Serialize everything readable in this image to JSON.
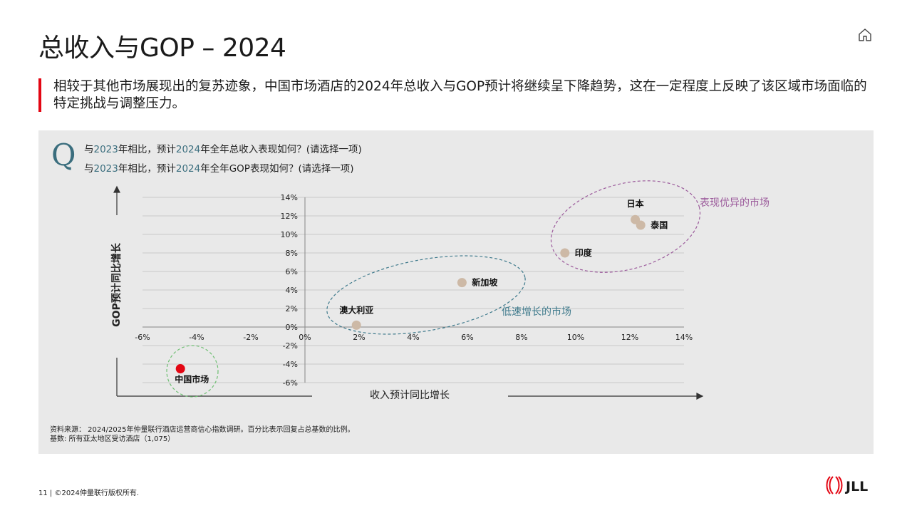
{
  "header": {
    "title": "总收入与GOP – 2024",
    "subtitle": "相较于其他市场展现出的复苏迹象，中国市场酒店的2024年总收入与GOP预计将继续呈下降趋势，这在一定程度上反映了该区域市场面临的特定挑战与调整压力。"
  },
  "question": {
    "marker": "Q",
    "line1": {
      "pre": "与",
      "y1": "2023",
      "mid": "年相比，预计",
      "y2": "2024",
      "post": "年全年总收入表现如何？(请选择一项)"
    },
    "line2": {
      "pre": "与",
      "y1": "2023",
      "mid": "年相比，预计",
      "y2": "2024",
      "post": "年全年GOP表现如何？(请选择一项)"
    }
  },
  "chart_data": {
    "type": "scatter",
    "xlabel": "收入预计同比增长",
    "ylabel": "GOP预计同比增长",
    "xlim": [
      -6,
      14
    ],
    "ylim": [
      -6,
      14
    ],
    "x_ticks": [
      "-6%",
      "-4%",
      "-2%",
      "0%",
      "2%",
      "4%",
      "6%",
      "8%",
      "10%",
      "12%",
      "14%"
    ],
    "y_ticks": [
      "14%",
      "12%",
      "10%",
      "8%",
      "6%",
      "4%",
      "2%",
      "0%",
      "-2%",
      "-4%",
      "-6%"
    ],
    "grid": true,
    "points": [
      {
        "label": "中国市场",
        "x": -4.6,
        "y": -4.5,
        "color": "#e30613"
      },
      {
        "label": "澳大利亚",
        "x": 1.9,
        "y": 0.2,
        "color": "#cdb9a6"
      },
      {
        "label": "新加坡",
        "x": 5.8,
        "y": 4.8,
        "color": "#cdb9a6"
      },
      {
        "label": "印度",
        "x": 9.6,
        "y": 8.0,
        "color": "#cdb9a6"
      },
      {
        "label": "日本",
        "x": 12.2,
        "y": 11.6,
        "color": "#cdb9a6"
      },
      {
        "label": "泰国",
        "x": 12.4,
        "y": 11.0,
        "color": "#cdb9a6"
      }
    ],
    "annotations": [
      {
        "text": "表现优异的市场",
        "color": "#9b5a9b"
      },
      {
        "text": "低速增长的市场",
        "color": "#3f7a8c"
      }
    ]
  },
  "source": {
    "line1": "资料来源： 2024/2025年仲量联行酒店运营商信心指数调研。百分比表示回复占总基数的比例。",
    "line2": "基数: 所有亚太地区受访酒店（1,075）"
  },
  "footer": {
    "text": "11 | ©2024仲量联行版权所有."
  },
  "logo": {
    "text": "JLL",
    "color": "#e30613"
  }
}
